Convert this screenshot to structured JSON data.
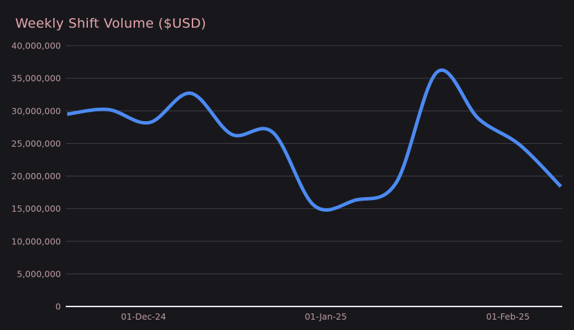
{
  "page": {
    "background_color": "#18181c"
  },
  "header": {
    "title": "Weekly Shift Volume ($USD)",
    "title_color": "#e5a5ae"
  },
  "chart_data": {
    "type": "line",
    "title": "Weekly Shift Volume ($USD)",
    "series": [
      {
        "name": "Weekly Shift Volume ($USD)",
        "x": [
          "18-Nov-24",
          "25-Nov-24",
          "02-Dec-24",
          "09-Dec-24",
          "16-Dec-24",
          "23-Dec-24",
          "30-Dec-24",
          "06-Jan-25",
          "13-Jan-25",
          "20-Jan-25",
          "27-Jan-25",
          "03-Feb-25",
          "10-Feb-25"
        ],
        "values": [
          29500000,
          30200000,
          28200000,
          32700000,
          26400000,
          26700000,
          15500000,
          16300000,
          19000000,
          36000000,
          28800000,
          24800000,
          18400000
        ]
      }
    ],
    "smooth": true,
    "line_color": "#4c8af2",
    "line_width": 5,
    "markers": "none",
    "legend": "none",
    "grid": "horizontal",
    "xlabel": "",
    "ylabel": "",
    "ylim": [
      0,
      40000000
    ],
    "y_ticks": [
      {
        "value": 0,
        "label": "0"
      },
      {
        "value": 5000000,
        "label": "5,000,000"
      },
      {
        "value": 10000000,
        "label": "10,000,000"
      },
      {
        "value": 15000000,
        "label": "15,000,000"
      },
      {
        "value": 20000000,
        "label": "20,000,000"
      },
      {
        "value": 25000000,
        "label": "25,000,000"
      },
      {
        "value": 30000000,
        "label": "30,000,000"
      },
      {
        "value": 35000000,
        "label": "35,000,000"
      },
      {
        "value": 40000000,
        "label": "40,000,000"
      }
    ],
    "x_ticks": [
      {
        "label": "01-Dec-24",
        "day_offset": 13
      },
      {
        "label": "01-Jan-25",
        "day_offset": 44
      },
      {
        "label": "01-Feb-25",
        "day_offset": 75
      }
    ],
    "x_span_days": 84,
    "axis_label_color": "#bb9aa2",
    "grid_color": "#3e3e46",
    "baseline_color": "#eeeef1"
  }
}
